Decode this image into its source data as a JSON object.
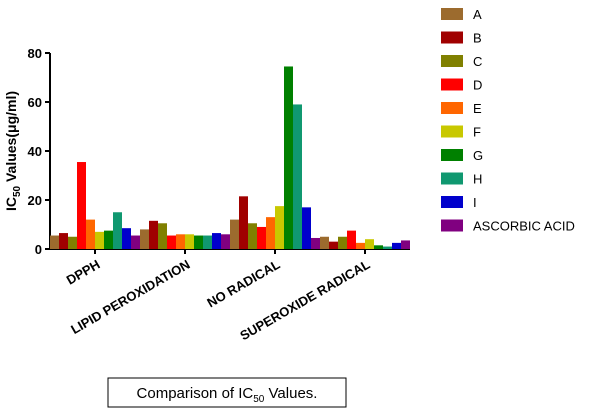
{
  "chart_data": {
    "type": "bar",
    "ylabel": {
      "main": "IC",
      "sub": "50",
      "rest": " Values(μg/ml)"
    },
    "caption": {
      "main": "Comparison of IC",
      "sub": "50",
      "rest": " Values."
    },
    "categories": [
      "DPPH",
      "LIPID PEROXIDATION",
      "NO RADICAL",
      "SUPEROXIDE RADICAL"
    ],
    "series": [
      {
        "name": "A",
        "color": "#9c6b2e",
        "values": [
          5.5,
          8,
          12,
          5
        ]
      },
      {
        "name": "B",
        "color": "#a00000",
        "values": [
          6.5,
          11.5,
          21.5,
          3
        ]
      },
      {
        "name": "C",
        "color": "#808000",
        "values": [
          5,
          10.5,
          10.5,
          5
        ]
      },
      {
        "name": "D",
        "color": "#ff0000",
        "values": [
          35.5,
          5.5,
          9,
          7.5
        ]
      },
      {
        "name": "E",
        "color": "#ff6600",
        "values": [
          12,
          6,
          13,
          2.5
        ]
      },
      {
        "name": "F",
        "color": "#c8c800",
        "values": [
          7,
          6,
          17.5,
          4
        ]
      },
      {
        "name": "G",
        "color": "#008000",
        "values": [
          7.5,
          5.5,
          74.5,
          1.5
        ]
      },
      {
        "name": "H",
        "color": "#109870",
        "values": [
          15,
          5.5,
          59,
          1
        ]
      },
      {
        "name": "I",
        "color": "#0000cc",
        "values": [
          8.5,
          6.5,
          17,
          2.5
        ]
      },
      {
        "name": "ASCORBIC ACID",
        "color": "#800080",
        "values": [
          5.5,
          6,
          4.5,
          3.5
        ]
      }
    ],
    "ylim": [
      0,
      80
    ],
    "yticks": [
      0,
      20,
      40,
      60,
      80
    ]
  }
}
